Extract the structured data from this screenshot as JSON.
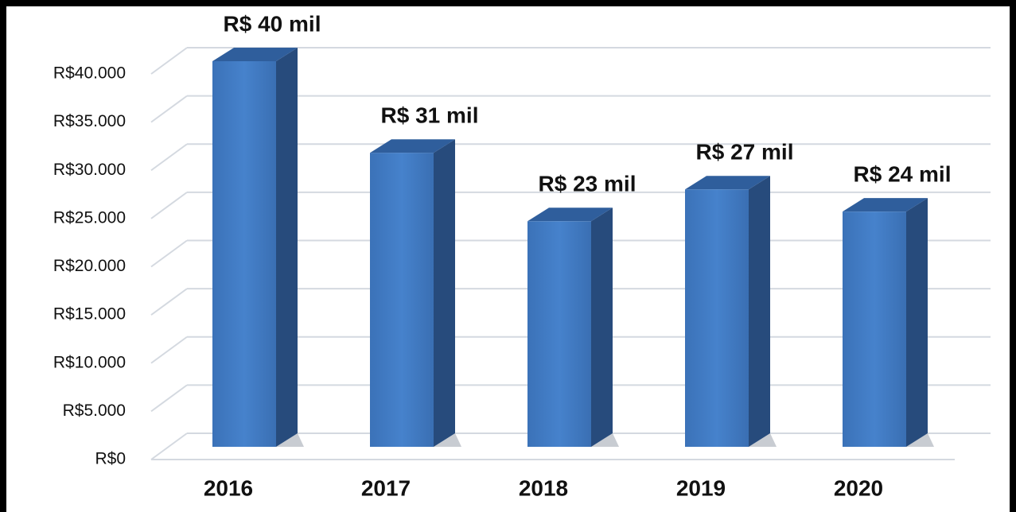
{
  "chart_data": {
    "type": "bar3d",
    "categories": [
      "2016",
      "2017",
      "2018",
      "2019",
      "2020"
    ],
    "values": [
      40000,
      30500,
      23400,
      26700,
      24400
    ],
    "value_labels": [
      "R$ 40 mil",
      "R$ 31 mil",
      "R$ 23 mil",
      "R$ 27 mil",
      "R$ 24 mil"
    ],
    "color": "#3f78c0",
    "ylim": [
      0,
      40000
    ],
    "yticks": [
      {
        "value": 0,
        "label": "R$0"
      },
      {
        "value": 5000,
        "label": "R$5.000"
      },
      {
        "value": 10000,
        "label": "R$10.000"
      },
      {
        "value": 15000,
        "label": "R$15.000"
      },
      {
        "value": 20000,
        "label": "R$20.000"
      },
      {
        "value": 25000,
        "label": "R$25.000"
      },
      {
        "value": 30000,
        "label": "R$30.000"
      },
      {
        "value": 35000,
        "label": "R$35.000"
      },
      {
        "value": 40000,
        "label": "R$40.000"
      }
    ],
    "grid": true
  }
}
